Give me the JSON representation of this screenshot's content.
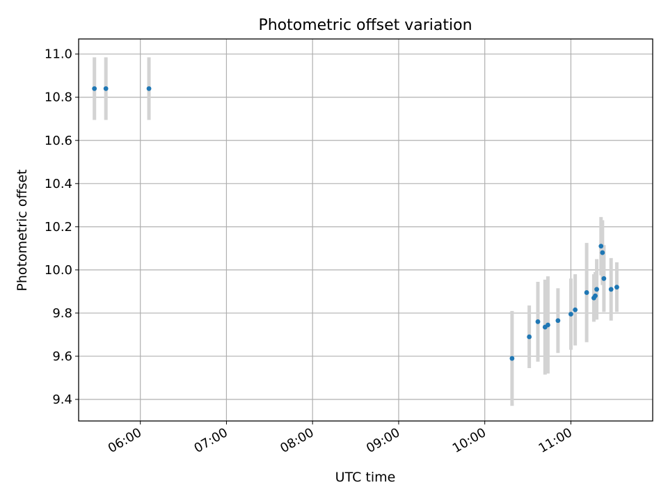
{
  "chart_data": {
    "type": "scatter",
    "title": "Photometric offset variation",
    "xlabel": "UTC time",
    "ylabel": "Photometric offset",
    "x_is_time": true,
    "xlim": [
      "05:17",
      "11:57"
    ],
    "ylim": [
      9.3,
      11.07
    ],
    "grid": true,
    "marker_color": "#1f77b4",
    "errorbar_color": "#d3d3d3",
    "x_ticks": [
      "06:00",
      "07:00",
      "08:00",
      "09:00",
      "10:00",
      "11:00"
    ],
    "y_ticks": [
      "9.4",
      "9.6",
      "9.8",
      "10.0",
      "10.2",
      "10.4",
      "10.6",
      "10.8",
      "11.0"
    ],
    "series": [
      {
        "points": [
          {
            "x": "05:28",
            "y": 10.84,
            "err": 0.145
          },
          {
            "x": "05:36",
            "y": 10.84,
            "err": 0.145
          },
          {
            "x": "06:06",
            "y": 10.84,
            "err": 0.145
          },
          {
            "x": "10:19",
            "y": 9.59,
            "err": 0.22
          },
          {
            "x": "10:31",
            "y": 9.69,
            "err": 0.145
          },
          {
            "x": "10:37",
            "y": 9.76,
            "err": 0.185
          },
          {
            "x": "10:42",
            "y": 9.735,
            "err": 0.22
          },
          {
            "x": "10:44",
            "y": 9.745,
            "err": 0.225
          },
          {
            "x": "10:51",
            "y": 9.765,
            "err": 0.15
          },
          {
            "x": "11:00",
            "y": 9.795,
            "err": 0.165
          },
          {
            "x": "11:03",
            "y": 9.815,
            "err": 0.165
          },
          {
            "x": "11:11",
            "y": 9.895,
            "err": 0.23
          },
          {
            "x": "11:16",
            "y": 9.87,
            "err": 0.11
          },
          {
            "x": "11:17",
            "y": 9.88,
            "err": 0.11
          },
          {
            "x": "11:18",
            "y": 9.91,
            "err": 0.14
          },
          {
            "x": "11:21",
            "y": 10.11,
            "err": 0.135
          },
          {
            "x": "11:22",
            "y": 10.08,
            "err": 0.15
          },
          {
            "x": "11:23",
            "y": 9.96,
            "err": 0.155
          },
          {
            "x": "11:28",
            "y": 9.91,
            "err": 0.145
          },
          {
            "x": "11:32",
            "y": 9.92,
            "err": 0.115
          }
        ]
      }
    ]
  }
}
